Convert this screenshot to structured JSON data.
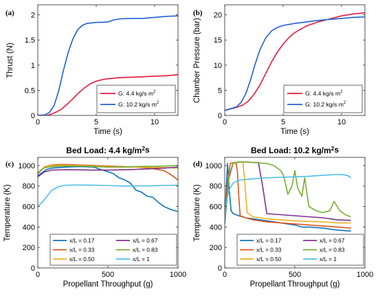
{
  "chart_data": [
    {
      "type": "line",
      "panel_label": "(a)",
      "title": "",
      "xlabel": "Time (s)",
      "ylabel": "Thrust (N)",
      "xlim": [
        0,
        12
      ],
      "ylim": [
        0,
        2.2
      ],
      "xticks": [
        0,
        5,
        10
      ],
      "xtick_labels": [
        "0",
        "5",
        "10"
      ],
      "yticks": [
        0,
        0.5,
        1,
        1.5,
        2
      ],
      "ytick_labels": [
        "0",
        "0.5",
        "1",
        "1.5",
        "2"
      ],
      "grid": false,
      "legend_position": "bottom-right",
      "series": [
        {
          "name": "G: 4.4 kg/s m²",
          "color": "#e8173a",
          "x": [
            0,
            0.8,
            1.2,
            1.6,
            2.0,
            2.5,
            3.0,
            3.5,
            4.0,
            4.5,
            5.0,
            5.5,
            6.0,
            7.0,
            8.0,
            9.0,
            10.0,
            11.0,
            12.0
          ],
          "y": [
            0,
            0.0,
            0.03,
            0.07,
            0.12,
            0.22,
            0.33,
            0.45,
            0.55,
            0.63,
            0.68,
            0.71,
            0.73,
            0.75,
            0.76,
            0.77,
            0.78,
            0.79,
            0.81
          ]
        },
        {
          "name": "G: 10.2 kg/s m²",
          "color": "#1f5fd6",
          "x": [
            0,
            0.6,
            1.0,
            1.4,
            1.8,
            2.2,
            2.6,
            3.0,
            3.4,
            3.8,
            4.2,
            4.6,
            5.0,
            5.5,
            6.0,
            6.5,
            7.0,
            8.0,
            9.0,
            10.0,
            11.0,
            12.0
          ],
          "y": [
            0,
            0.01,
            0.06,
            0.2,
            0.5,
            0.9,
            1.25,
            1.52,
            1.7,
            1.79,
            1.83,
            1.84,
            1.85,
            1.85,
            1.86,
            1.9,
            1.92,
            1.93,
            1.93,
            1.95,
            1.97,
            1.98
          ]
        }
      ]
    },
    {
      "type": "line",
      "panel_label": "(b)",
      "title": "",
      "xlabel": "Time (s)",
      "ylabel": "Chamber Pressure (bar)",
      "xlim": [
        0,
        12
      ],
      "ylim": [
        0,
        22
      ],
      "xticks": [
        0,
        5,
        10
      ],
      "xtick_labels": [
        "0",
        "5",
        "10"
      ],
      "yticks": [
        0,
        5,
        10,
        15,
        20
      ],
      "ytick_labels": [
        "0",
        "5",
        "10",
        "15",
        "20"
      ],
      "grid": false,
      "legend_position": "bottom-right",
      "series": [
        {
          "name": "G: 4.4 kg/s m²",
          "color": "#e8173a",
          "x": [
            0,
            1.0,
            1.5,
            2.0,
            2.5,
            3.0,
            3.5,
            4.0,
            4.5,
            5.0,
            5.5,
            6.0,
            7.0,
            8.0,
            9.0,
            10.0,
            11.0,
            12.0
          ],
          "y": [
            1.0,
            1.6,
            2.0,
            2.8,
            4.2,
            6.0,
            8.3,
            10.6,
            12.6,
            14.2,
            15.5,
            16.5,
            17.8,
            18.6,
            19.2,
            19.8,
            20.2,
            20.4
          ]
        },
        {
          "name": "G: 10.2 kg/s m²",
          "color": "#1f5fd6",
          "x": [
            0,
            1.0,
            1.4,
            1.8,
            2.2,
            2.6,
            3.0,
            3.5,
            4.0,
            4.5,
            5.0,
            6.0,
            7.0,
            8.0,
            9.0,
            10.0,
            11.0,
            12.0
          ],
          "y": [
            1.0,
            1.7,
            2.6,
            4.3,
            7.0,
            10.2,
            13.0,
            15.4,
            16.8,
            17.5,
            17.9,
            18.3,
            18.6,
            18.9,
            19.1,
            19.3,
            19.5,
            19.6
          ]
        }
      ]
    },
    {
      "type": "line",
      "panel_label": "(c)",
      "title": "Bed Load: 4.4 kg/m²s",
      "xlabel": "Propellant Throughput (g)",
      "ylabel": "Temperature (K)",
      "xlim": [
        0,
        1000
      ],
      "ylim": [
        0,
        1080
      ],
      "xticks": [
        0,
        500,
        1000
      ],
      "xtick_labels": [
        "0",
        "500",
        "1000"
      ],
      "yticks": [
        0,
        200,
        400,
        600,
        800,
        1000
      ],
      "ytick_labels": [
        "0",
        "200",
        "400",
        "600",
        "800",
        "1000"
      ],
      "grid": false,
      "legend_position": "bottom",
      "legend_columns": 2,
      "series": [
        {
          "name": "x/L = 0.17",
          "color": "#0e72bd",
          "x": [
            0,
            30,
            60,
            100,
            150,
            200,
            300,
            400,
            450,
            500,
            540,
            580,
            620,
            660,
            700,
            740,
            780,
            820,
            860,
            900,
            950,
            1000
          ],
          "y": [
            900,
            930,
            960,
            975,
            980,
            985,
            990,
            985,
            960,
            940,
            920,
            880,
            860,
            830,
            760,
            740,
            700,
            690,
            640,
            600,
            570,
            550
          ]
        },
        {
          "name": "x/L = 0.33",
          "color": "#d9541a",
          "x": [
            0,
            50,
            100,
            150,
            200,
            300,
            400,
            500,
            600,
            700,
            800,
            900,
            950,
            1000
          ],
          "y": [
            920,
            990,
            1005,
            1010,
            1010,
            1005,
            1000,
            995,
            990,
            985,
            975,
            950,
            910,
            860
          ]
        },
        {
          "name": "x/L = 0.50",
          "color": "#edb120",
          "x": [
            0,
            50,
            100,
            150,
            200,
            300,
            400,
            500,
            600,
            700,
            800,
            900,
            1000
          ],
          "y": [
            930,
            990,
            1000,
            1003,
            1003,
            1000,
            995,
            990,
            985,
            985,
            982,
            980,
            975
          ]
        },
        {
          "name": "x/L = 0.67",
          "color": "#7e2f8e",
          "x": [
            0,
            50,
            100,
            200,
            300,
            400,
            500,
            600,
            700,
            800,
            900,
            1000
          ],
          "y": [
            890,
            940,
            955,
            960,
            958,
            955,
            955,
            958,
            962,
            968,
            975,
            985
          ]
        },
        {
          "name": "x/L = 0.83",
          "color": "#77ac30",
          "x": [
            0,
            50,
            100,
            200,
            300,
            400,
            500,
            600,
            700,
            800,
            900,
            1000
          ],
          "y": [
            930,
            980,
            990,
            995,
            995,
            990,
            985,
            985,
            990,
            992,
            995,
            1000
          ]
        },
        {
          "name": "x/L = 1",
          "color": "#4dbeee",
          "x": [
            0,
            30,
            60,
            100,
            150,
            200,
            300,
            400,
            500,
            600,
            700,
            800,
            900,
            1000
          ],
          "y": [
            600,
            640,
            690,
            760,
            795,
            808,
            810,
            808,
            805,
            800,
            800,
            802,
            805,
            808
          ]
        }
      ]
    },
    {
      "type": "line",
      "panel_label": "(d)",
      "title": "Bed Load: 10.2 kg/m²s",
      "xlabel": "Propellant Throughput (g)",
      "ylabel": "Temperature (K)",
      "xlim": [
        0,
        1000
      ],
      "ylim": [
        0,
        1080
      ],
      "xticks": [
        0,
        500,
        1000
      ],
      "xtick_labels": [
        "0",
        "500",
        "1000"
      ],
      "yticks": [
        0,
        200,
        400,
        600,
        800,
        1000
      ],
      "ytick_labels": [
        "0",
        "200",
        "400",
        "600",
        "800",
        "1000"
      ],
      "grid": false,
      "legend_position": "bottom",
      "legend_columns": 2,
      "series": [
        {
          "name": "x/L = 0.17",
          "color": "#0e72bd",
          "x": [
            0,
            10,
            20,
            30,
            45,
            60,
            80,
            100,
            150,
            200,
            300,
            400,
            500,
            550,
            600,
            700,
            750,
            800,
            850,
            900
          ],
          "y": [
            430,
            750,
            1020,
            800,
            560,
            530,
            520,
            510,
            490,
            480,
            460,
            440,
            420,
            400,
            400,
            390,
            380,
            370,
            365,
            360
          ]
        },
        {
          "name": "x/L = 0.33",
          "color": "#d9541a",
          "x": [
            0,
            20,
            40,
            60,
            80,
            90,
            100,
            110,
            150,
            200,
            300,
            400,
            500,
            600,
            700,
            800,
            900
          ],
          "y": [
            430,
            850,
            1020,
            1030,
            1030,
            950,
            700,
            510,
            490,
            470,
            450,
            440,
            430,
            420,
            410,
            400,
            390
          ]
        },
        {
          "name": "x/L = 0.50",
          "color": "#edb120",
          "x": [
            0,
            30,
            60,
            100,
            130,
            145,
            160,
            200,
            300,
            400,
            500,
            600,
            700,
            800,
            900
          ],
          "y": [
            430,
            900,
            1025,
            1035,
            1030,
            800,
            540,
            500,
            480,
            470,
            460,
            455,
            450,
            440,
            440
          ]
        },
        {
          "name": "x/L = 0.67",
          "color": "#7e2f8e",
          "x": [
            0,
            30,
            60,
            100,
            150,
            200,
            240,
            270,
            300,
            400,
            500,
            600,
            700,
            800,
            900
          ],
          "y": [
            430,
            880,
            1020,
            1035,
            1035,
            1030,
            1030,
            800,
            530,
            520,
            510,
            500,
            490,
            470,
            465
          ]
        },
        {
          "name": "x/L = 0.83",
          "color": "#77ac30",
          "x": [
            0,
            30,
            60,
            100,
            150,
            200,
            300,
            350,
            400,
            420,
            450,
            480,
            500,
            520,
            550,
            570,
            600,
            650,
            700,
            750,
            780,
            820,
            860,
            900
          ],
          "y": [
            430,
            900,
            1020,
            1035,
            1035,
            1030,
            1020,
            1000,
            950,
            900,
            720,
            800,
            950,
            780,
            700,
            880,
            600,
            560,
            540,
            560,
            650,
            560,
            520,
            500
          ]
        },
        {
          "name": "x/L = 1",
          "color": "#4dbeee",
          "x": [
            0,
            10,
            30,
            60,
            100,
            150,
            200,
            300,
            400,
            500,
            600,
            700,
            800,
            850,
            880,
            900
          ],
          "y": [
            430,
            640,
            760,
            830,
            855,
            865,
            870,
            880,
            885,
            890,
            895,
            905,
            912,
            910,
            900,
            880
          ]
        }
      ]
    }
  ]
}
